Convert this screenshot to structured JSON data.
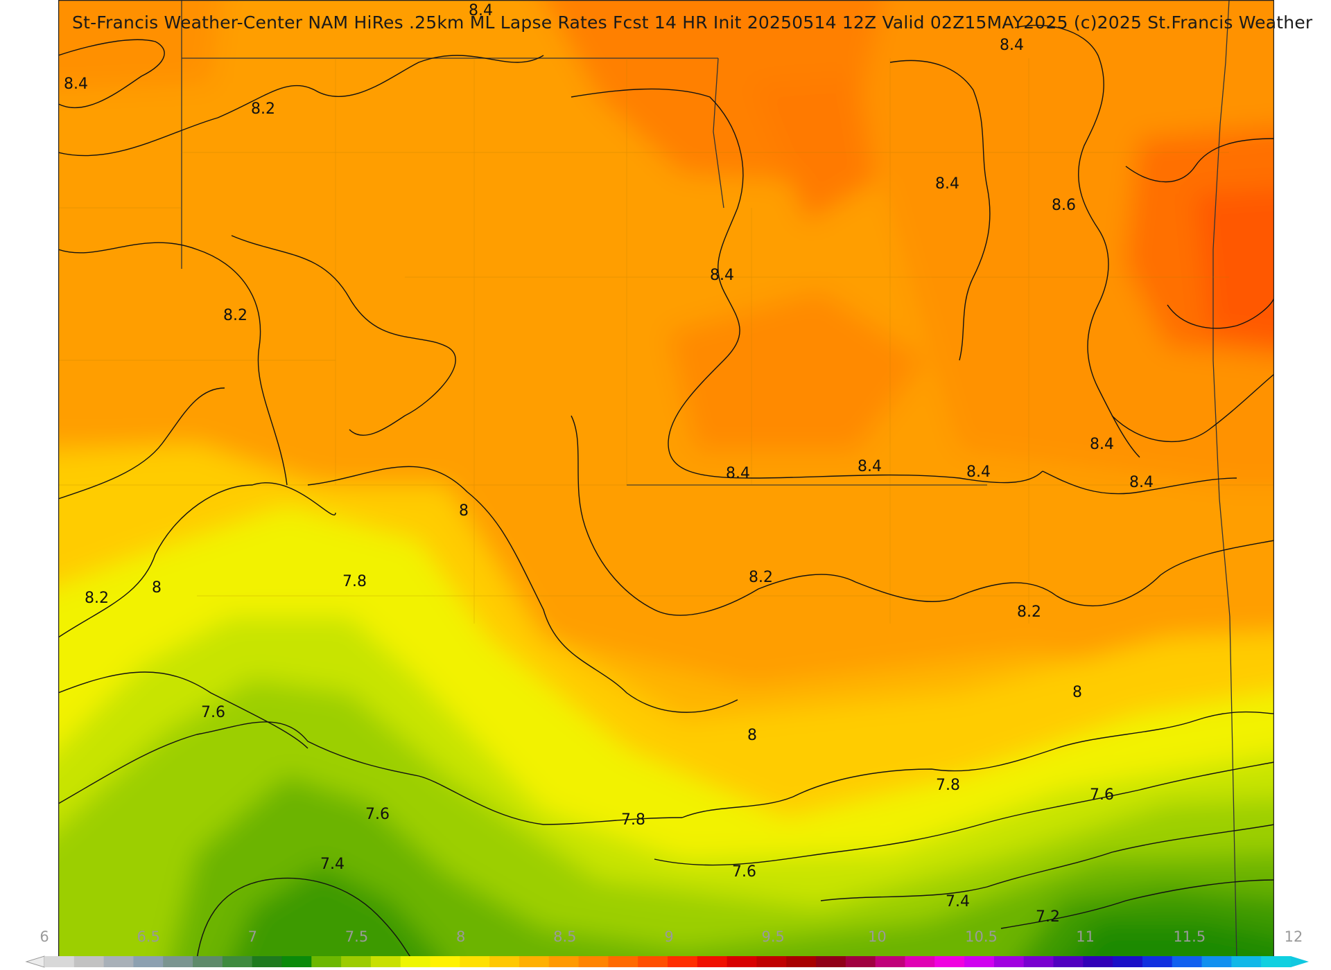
{
  "title": "St-Francis Weather-Center NAM HiRes .25km ML Lapse Rates  Fcst 14 HR Init 20250514 12Z  Valid 02Z15MAY2025    (c)2025 St.Francis Weather",
  "colorbar": {
    "ticks": [
      "6",
      "6.5",
      "7",
      "7.5",
      "8",
      "8.5",
      "9",
      "9.5",
      "10",
      "10.5",
      "11",
      "11.5",
      "12"
    ],
    "colors": [
      "#d8d8d8",
      "#c2c2c2",
      "#a8b0b8",
      "#8ca0b0",
      "#7a9590",
      "#5e8a6a",
      "#3e8a3e",
      "#1e7a1e",
      "#0a8a0a",
      "#6cb800",
      "#9ccc00",
      "#c8e000",
      "#eef600",
      "#fff200",
      "#ffe000",
      "#ffc800",
      "#ffb000",
      "#ff9a00",
      "#ff8400",
      "#ff6a00",
      "#ff4e00",
      "#ff2e00",
      "#f01000",
      "#d80000",
      "#c00000",
      "#a80000",
      "#900018",
      "#a00040",
      "#c0007a",
      "#e000b4",
      "#f000e0",
      "#d000f0",
      "#a000e0",
      "#7800d0",
      "#5000c0",
      "#3000b8",
      "#1a10c8",
      "#1030e0",
      "#1060f0",
      "#1090f0",
      "#10b8e8",
      "#10d0e0"
    ]
  },
  "contour_labels": [
    "8.4",
    "8.4",
    "8.4",
    "8.2",
    "8.2",
    "8.4",
    "8.4",
    "8.6",
    "8.4",
    "8.4",
    "8.4",
    "8.4",
    "8.4",
    "8",
    "8.2",
    "8",
    "7.8",
    "8.2",
    "8.2",
    "8",
    "7.6",
    "8",
    "7.8",
    "7.6",
    "7.8",
    "7.6",
    "7.4",
    "7.6",
    "7.4",
    "7.2"
  ]
}
